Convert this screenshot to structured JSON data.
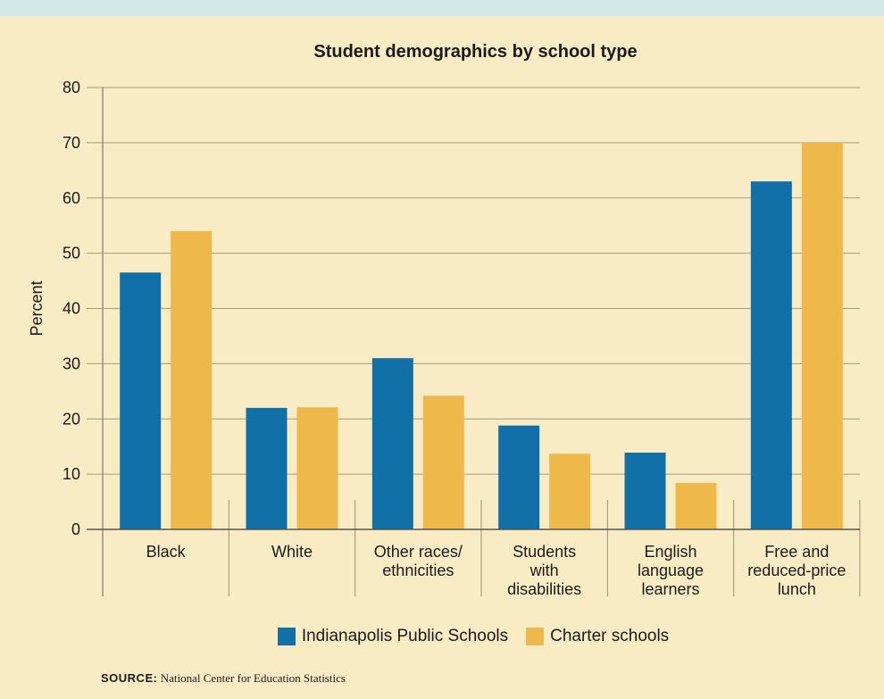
{
  "chart_data": {
    "type": "bar",
    "title": "Student demographics by school type",
    "ylabel": "Percent",
    "ylim": [
      0,
      80
    ],
    "yticks": [
      0,
      10,
      20,
      30,
      40,
      50,
      60,
      70,
      80
    ],
    "grid": true,
    "legend_position": "bottom",
    "categories": [
      "Black",
      "White",
      "Other races/ ethnicities",
      "Students with disabilities",
      "English language learners",
      "Free and reduced-price lunch"
    ],
    "series": [
      {
        "name": "Indianapolis Public Schools",
        "color": "#1270a8",
        "values": [
          46.5,
          22,
          31,
          18.8,
          13.9,
          63
        ]
      },
      {
        "name": "Charter schools",
        "color": "#efb84a",
        "values": [
          54,
          22.1,
          24.2,
          13.7,
          8.4,
          70
        ]
      }
    ]
  },
  "source": {
    "label": "SOURCE:",
    "text": "National Center for Education Statistics"
  }
}
